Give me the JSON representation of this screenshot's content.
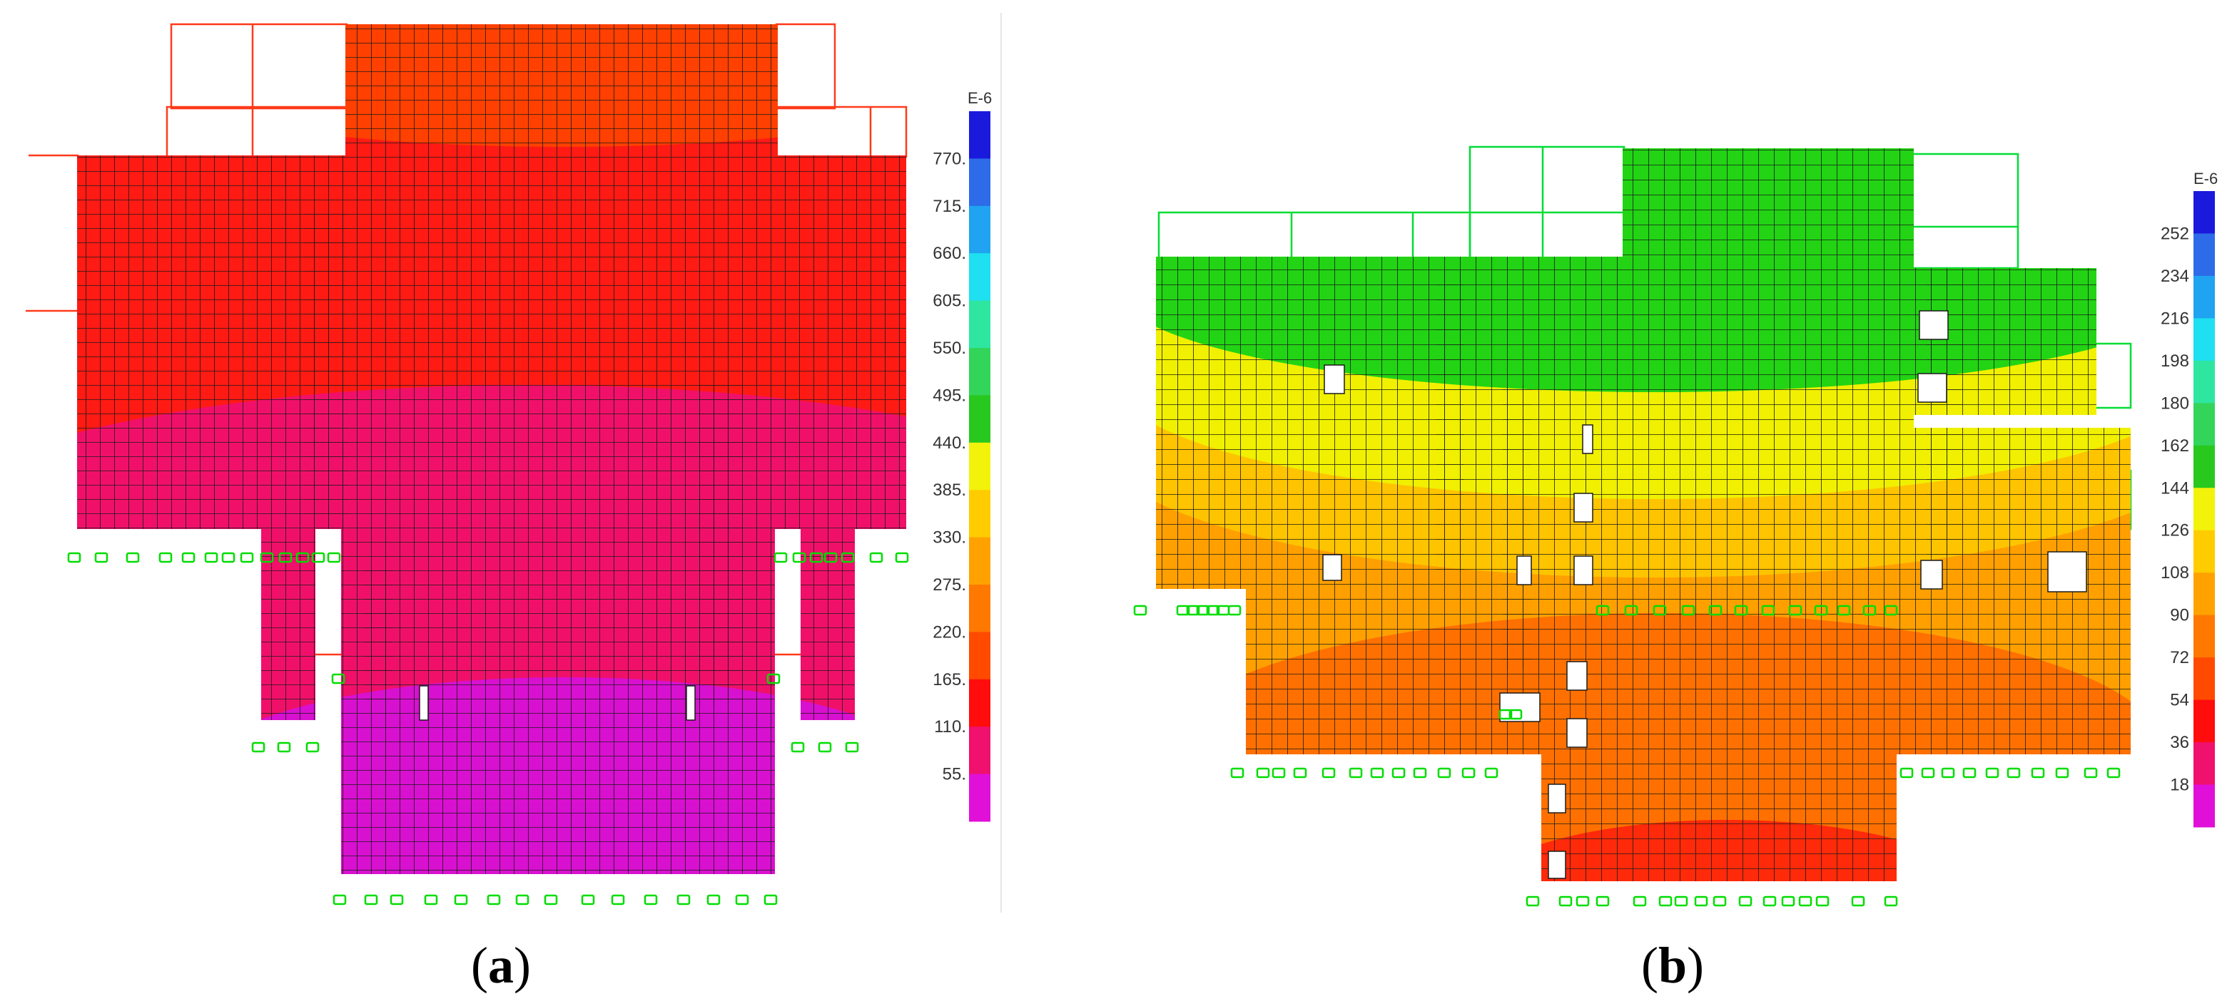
{
  "panels": [
    {
      "id": "a",
      "caption_open": "(",
      "caption_letter": "a",
      "caption_close": ")",
      "legend": {
        "unit": "E-6",
        "tick_labels": [
          "770.",
          "715.",
          "660.",
          "605.",
          "550.",
          "495.",
          "440.",
          "385.",
          "330.",
          "275.",
          "220.",
          "165.",
          "110.",
          "55."
        ],
        "band_colors": [
          "#1a1adc",
          "#2d6be8",
          "#20a3f0",
          "#1ee0f0",
          "#2ee6a0",
          "#33d45a",
          "#28c81e",
          "#f2f20a",
          "#ffcc00",
          "#ffa200",
          "#ff7800",
          "#ff4a00",
          "#ff0c0c",
          "#f0106e",
          "#e010d8"
        ]
      },
      "regions": [
        {
          "name": "top-band",
          "color": "#ff4000"
        },
        {
          "name": "upper-red",
          "color": "#ff1a14"
        },
        {
          "name": "magenta-band",
          "color": "#f0106a"
        },
        {
          "name": "bottom-purple",
          "color": "#d810d0"
        }
      ]
    },
    {
      "id": "b",
      "caption_open": "(",
      "caption_letter": "b",
      "caption_close": ")",
      "legend": {
        "unit": "E-6",
        "tick_labels": [
          "252",
          "234",
          "216",
          "198",
          "180",
          "162",
          "144",
          "126",
          "108",
          "90",
          "72",
          "54",
          "36",
          "18"
        ],
        "band_colors": [
          "#1a1adc",
          "#2d6be8",
          "#20a3f0",
          "#1ee0f0",
          "#2ee6a0",
          "#33d45a",
          "#28c81e",
          "#f2f20a",
          "#ffcc00",
          "#ffa200",
          "#ff7800",
          "#ff4a00",
          "#ff0c0c",
          "#f0106e",
          "#e010d8"
        ]
      },
      "regions": [
        {
          "name": "green",
          "color": "#22d414"
        },
        {
          "name": "yellow",
          "color": "#f0f000"
        },
        {
          "name": "yellow-orange",
          "color": "#ffc400"
        },
        {
          "name": "orange",
          "color": "#ffa000"
        },
        {
          "name": "dark-orange",
          "color": "#ff7000"
        },
        {
          "name": "red",
          "color": "#ff2a0a"
        }
      ]
    }
  ],
  "colors": {
    "mesh_line": "#1a1a1a",
    "support_symbol": "#00dd00",
    "outline_a": "#ff3a1a",
    "outline_b": "#00dd33"
  }
}
